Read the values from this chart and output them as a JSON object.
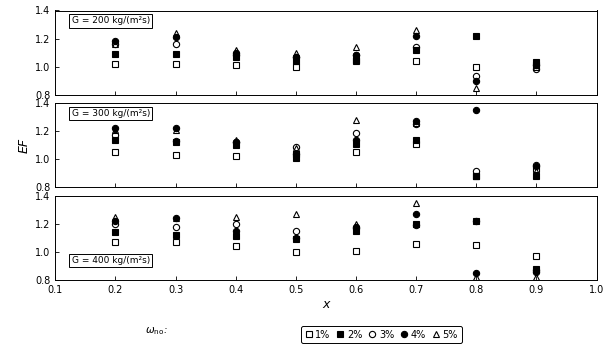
{
  "ylabel": "EF",
  "xlabel": "x",
  "xlim": [
    0.1,
    1.0
  ],
  "ylim": [
    0.8,
    1.4
  ],
  "xticks": [
    0.1,
    0.2,
    0.3,
    0.4,
    0.5,
    0.6,
    0.7,
    0.8,
    0.9,
    1.0
  ],
  "yticks": [
    0.8,
    1.0,
    1.2,
    1.4
  ],
  "panels": [
    {
      "label": "G = 200 kg/(m²s)",
      "label_loc": "top_left",
      "series": {
        "1%": {
          "x": [
            0.2,
            0.3,
            0.4,
            0.5,
            0.6,
            0.7,
            0.8,
            0.9
          ],
          "y": [
            1.02,
            1.02,
            1.01,
            1.0,
            1.04,
            1.04,
            1.0,
            1.01
          ]
        },
        "2%": {
          "x": [
            0.2,
            0.3,
            0.4,
            0.5,
            0.6,
            0.7,
            0.8,
            0.9
          ],
          "y": [
            1.09,
            1.09,
            1.07,
            1.04,
            1.05,
            1.12,
            1.22,
            1.03
          ]
        },
        "3%": {
          "x": [
            0.2,
            0.3,
            0.4,
            0.5,
            0.6,
            0.7,
            0.8,
            0.9
          ],
          "y": [
            1.16,
            1.16,
            1.08,
            1.07,
            1.08,
            1.14,
            0.93,
            0.98
          ]
        },
        "4%": {
          "x": [
            0.2,
            0.3,
            0.4,
            0.5,
            0.6,
            0.7,
            0.8,
            0.9
          ],
          "y": [
            1.18,
            1.21,
            1.1,
            1.07,
            1.08,
            1.22,
            0.9,
            1.01
          ]
        },
        "5%": {
          "x": [
            0.2,
            0.3,
            0.4,
            0.5,
            0.6,
            0.7,
            0.8,
            0.9
          ],
          "y": [
            1.16,
            1.24,
            1.12,
            1.1,
            1.14,
            1.26,
            0.85,
            1.0
          ]
        }
      }
    },
    {
      "label": "G = 300 kg/(m²s)",
      "label_loc": "top_left",
      "series": {
        "1%": {
          "x": [
            0.2,
            0.3,
            0.4,
            0.5,
            0.6,
            0.7,
            0.8,
            0.9
          ],
          "y": [
            1.05,
            1.03,
            1.02,
            1.04,
            1.05,
            1.11,
            0.88,
            0.93
          ]
        },
        "2%": {
          "x": [
            0.2,
            0.3,
            0.4,
            0.5,
            0.6,
            0.7,
            0.8,
            0.9
          ],
          "y": [
            1.14,
            1.12,
            1.1,
            1.01,
            1.11,
            1.14,
            0.88,
            0.88
          ]
        },
        "3%": {
          "x": [
            0.2,
            0.3,
            0.4,
            0.5,
            0.6,
            0.7,
            0.8,
            0.9
          ],
          "y": [
            1.17,
            1.13,
            1.12,
            1.09,
            1.19,
            1.25,
            0.92,
            0.96
          ]
        },
        "4%": {
          "x": [
            0.2,
            0.3,
            0.4,
            0.5,
            0.6,
            0.7,
            0.8,
            0.9
          ],
          "y": [
            1.22,
            1.22,
            1.12,
            1.04,
            1.14,
            1.27,
            1.35,
            0.95
          ]
        },
        "5%": {
          "x": [
            0.2,
            0.3,
            0.4,
            0.5,
            0.6,
            0.7,
            0.8,
            0.9
          ],
          "y": [
            1.21,
            1.21,
            1.14,
            1.08,
            1.28,
            1.26,
            0.88,
            0.92
          ]
        }
      }
    },
    {
      "label": "G = 400 kg/(m²s)",
      "label_loc": "bottom_left",
      "series": {
        "1%": {
          "x": [
            0.2,
            0.3,
            0.4,
            0.5,
            0.6,
            0.7,
            0.8,
            0.9
          ],
          "y": [
            1.07,
            1.07,
            1.04,
            1.0,
            1.01,
            1.06,
            1.05,
            0.97
          ]
        },
        "2%": {
          "x": [
            0.2,
            0.3,
            0.4,
            0.5,
            0.6,
            0.7,
            0.8,
            0.9
          ],
          "y": [
            1.14,
            1.12,
            1.11,
            1.09,
            1.15,
            1.2,
            1.22,
            0.88
          ]
        },
        "3%": {
          "x": [
            0.2,
            0.3,
            0.4,
            0.5,
            0.6,
            0.7,
            0.8,
            0.9
          ],
          "y": [
            1.2,
            1.18,
            1.2,
            1.15,
            1.17,
            1.19,
            1.22,
            0.87
          ]
        },
        "4%": {
          "x": [
            0.2,
            0.3,
            0.4,
            0.5,
            0.6,
            0.7,
            0.8,
            0.9
          ],
          "y": [
            1.22,
            1.24,
            1.15,
            1.1,
            1.18,
            1.27,
            0.85,
            0.86
          ]
        },
        "5%": {
          "x": [
            0.2,
            0.3,
            0.4,
            0.5,
            0.6,
            0.7,
            0.8,
            0.9
          ],
          "y": [
            1.25,
            1.24,
            1.25,
            1.27,
            1.2,
            1.35,
            0.82,
            0.82
          ]
        }
      }
    }
  ],
  "series_order": [
    "1%",
    "2%",
    "3%",
    "4%",
    "5%"
  ],
  "series_styles": {
    "1%": {
      "marker": "s",
      "filled": false,
      "size": 4.5
    },
    "2%": {
      "marker": "s",
      "filled": true,
      "size": 4.5
    },
    "3%": {
      "marker": "o",
      "filled": false,
      "size": 4.5
    },
    "4%": {
      "marker": "o",
      "filled": true,
      "size": 4.5
    },
    "5%": {
      "marker": "^",
      "filled": false,
      "size": 4.5
    }
  },
  "background_color": "#ffffff",
  "marker_color": "black"
}
